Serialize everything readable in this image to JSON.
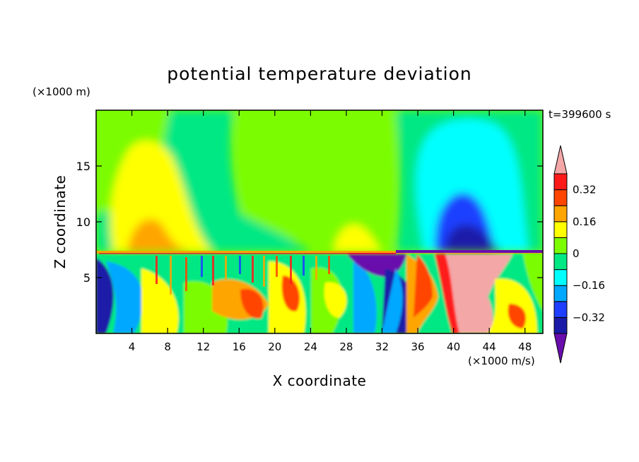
{
  "chart_data": {
    "type": "heatmap",
    "title": "potential temperature deviation",
    "xlabel": "X coordinate",
    "ylabel": "Z coordinate",
    "x_unit": "(×1000 m/s)",
    "y_unit": "(×1000 m)",
    "time_label": "t=399600 s",
    "xlim": [
      0,
      50
    ],
    "ylim": [
      0,
      20
    ],
    "x_ticks": [
      4,
      8,
      12,
      16,
      20,
      24,
      28,
      32,
      36,
      40,
      44,
      48
    ],
    "y_ticks": [
      5,
      10,
      15
    ],
    "colorbar": {
      "labels": [
        "0.32",
        "0.16",
        "0",
        "−0.16",
        "−0.32"
      ],
      "label_values": [
        0.32,
        0.16,
        0,
        -0.16,
        -0.32
      ],
      "levels": [
        -0.4,
        -0.32,
        -0.24,
        -0.16,
        -0.08,
        0,
        0.08,
        0.16,
        0.24,
        0.32,
        0.4
      ],
      "colors": [
        "#6a0dad",
        "#1a1aa8",
        "#1e3fff",
        "#00a8ff",
        "#00ffff",
        "#00e884",
        "#7cfc00",
        "#ffff00",
        "#ffa500",
        "#ff4500",
        "#ff1a1a",
        "#f4a7a7"
      ]
    },
    "regions": [
      {
        "x": [
          2,
          14
        ],
        "z": [
          7.4,
          17.5
        ],
        "value": 0.12,
        "note": "warm plume left"
      },
      {
        "x": [
          4,
          8
        ],
        "z": [
          7.4,
          10
        ],
        "value": 0.2
      },
      {
        "x": [
          27,
          32
        ],
        "z": [
          7.4,
          10
        ],
        "value": 0.12
      },
      {
        "x": [
          37,
          47
        ],
        "z": [
          7.4,
          18
        ],
        "value": -0.14,
        "note": "cool plume right"
      },
      {
        "x": [
          39,
          45
        ],
        "z": [
          7.4,
          12.5
        ],
        "value": -0.22
      },
      {
        "x": [
          39,
          44
        ],
        "z": [
          7.4,
          9.5
        ],
        "value": -0.3
      },
      {
        "x": [
          40,
          46
        ],
        "z": [
          0.2,
          7
        ],
        "value": 0.4,
        "note": "warm core"
      },
      {
        "x": [
          28,
          34
        ],
        "z": [
          4,
          7.2
        ],
        "value": -0.36
      }
    ]
  }
}
